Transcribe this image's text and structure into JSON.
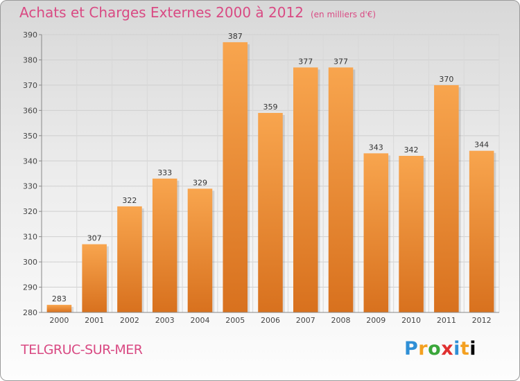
{
  "header": {
    "title": "Achats et Charges Externes 2000 à 2012",
    "unit": "(en milliers d'€)"
  },
  "footer": {
    "town": "TELGRUC-SUR-MER",
    "logo": [
      "P",
      "r",
      "o",
      "x",
      "i",
      "t",
      "i"
    ]
  },
  "colors": {
    "bar_top": "#f8a54e",
    "bar_bottom": "#d8711e",
    "title": "#d94a83"
  },
  "chart_data": {
    "type": "bar",
    "categories": [
      "2000",
      "2001",
      "2002",
      "2003",
      "2004",
      "2005",
      "2006",
      "2007",
      "2008",
      "2009",
      "2010",
      "2011",
      "2012"
    ],
    "values": [
      283,
      307,
      322,
      333,
      329,
      387,
      359,
      377,
      377,
      343,
      342,
      370,
      344
    ],
    "ylim": [
      280,
      390
    ],
    "yticks": [
      280,
      290,
      300,
      310,
      320,
      330,
      340,
      350,
      360,
      370,
      380,
      390
    ],
    "grid": true
  }
}
